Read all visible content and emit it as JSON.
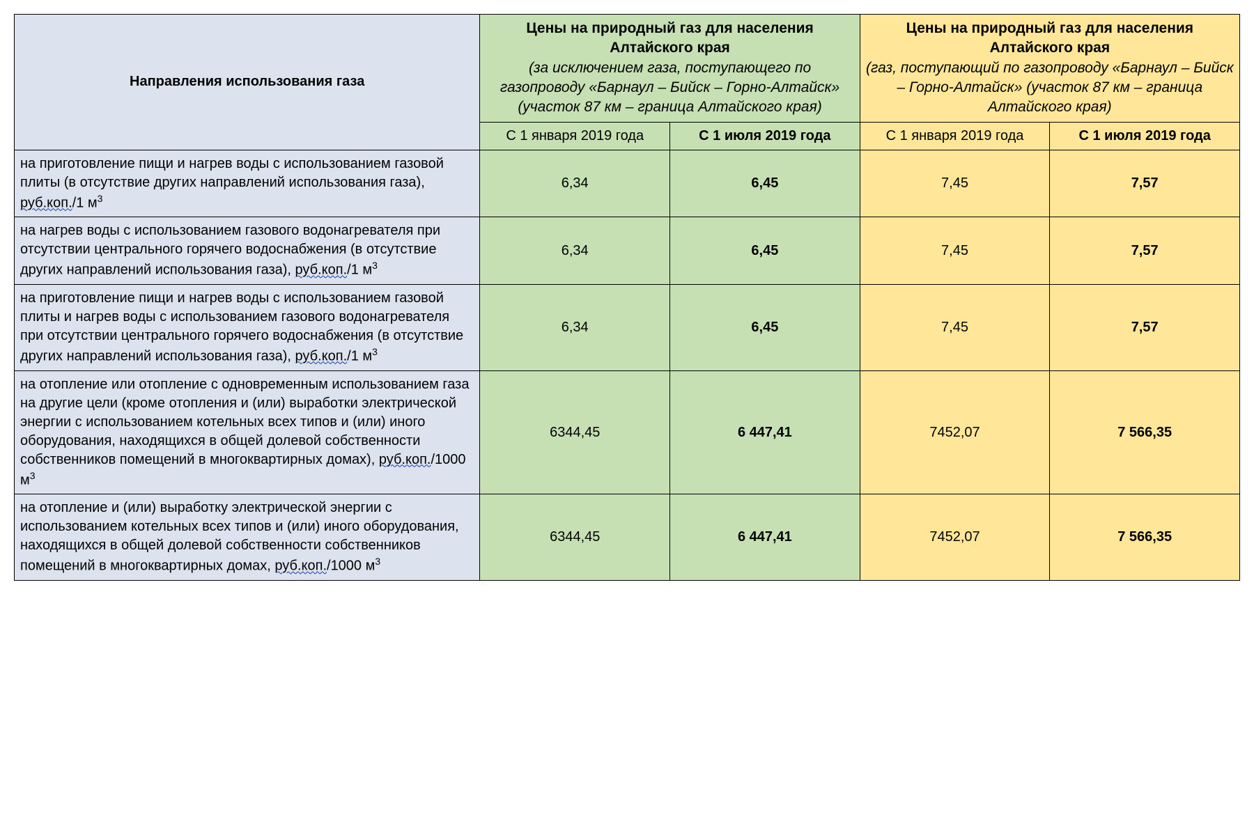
{
  "colors": {
    "usage_bg": "#DCE3EE",
    "green_bg": "#C6E0B4",
    "yellow_bg": "#FFE699",
    "border": "#000000"
  },
  "header": {
    "usage_title": "Направления использования газа",
    "green_title_bold": "Цены на природный газ для населения Алтайского края",
    "green_title_italic": "(за исключением газа, поступающего по газопроводу «Барнаул – Бийск – Горно-Алтайск» (участок 87 км – граница Алтайского края)",
    "yellow_title_bold": "Цены на природный газ для населения Алтайского края",
    "yellow_title_italic": "(газ, поступающий по газопроводу «Барнаул – Бийск – Горно-Алтайск» (участок 87 км – граница Алтайского края)",
    "sub_jan": "С 1 января 2019 года",
    "sub_jul": "С 1 июля 2019 года"
  },
  "unit_prefix": "руб.коп./",
  "unit_1m3": "1 м",
  "unit_1000m3": "1000 м",
  "rows": [
    {
      "label_pre": "на приготовление пищи и нагрев воды с использованием газовой плиты (в отсутствие других направлений использования газа), ",
      "unit": "1 м",
      "g_jan": "6,34",
      "g_jul": "6,45",
      "y_jan": "7,45",
      "y_jul": "7,57"
    },
    {
      "label_pre": "на нагрев воды с использованием газового водонагревателя при отсутствии центрального горячего водоснабжения (в отсутствие других направлений использования газа), ",
      "unit": "1 м",
      "g_jan": "6,34",
      "g_jul": "6,45",
      "y_jan": "7,45",
      "y_jul": "7,57"
    },
    {
      "label_pre": "на приготовление пищи и нагрев воды с использованием газовой плиты и нагрев воды с использованием газового водонагревателя при отсутствии центрального горячего водоснабжения (в отсутствие других направлений использования газа), ",
      "unit": "1 м",
      "g_jan": "6,34",
      "g_jul": "6,45",
      "y_jan": "7,45",
      "y_jul": "7,57"
    },
    {
      "label_pre": "на отопление или отопление с одновременным использованием газа на другие цели (кроме отопления и (или) выработки электрической энергии с использованием котельных всех типов и (или) иного оборудования, находящихся в общей долевой собственности собственников помещений в многоквартирных домах), ",
      "unit": "1000 м",
      "g_jan": "6344,45",
      "g_jul": "6 447,41",
      "y_jan": "7452,07",
      "y_jul": "7 566,35"
    },
    {
      "label_pre": "на отопление и (или) выработку электрической энергии с использованием котельных всех типов и (или) иного оборудования, находящихся в общей долевой собственности собственников помещений в многоквартирных домах, ",
      "unit": "1000 м",
      "g_jan": "6344,45",
      "g_jul": "6 447,41",
      "y_jan": "7452,07",
      "y_jul": "7 566,35"
    }
  ],
  "col_widths": {
    "usage": "38%",
    "data": "15.5%"
  }
}
